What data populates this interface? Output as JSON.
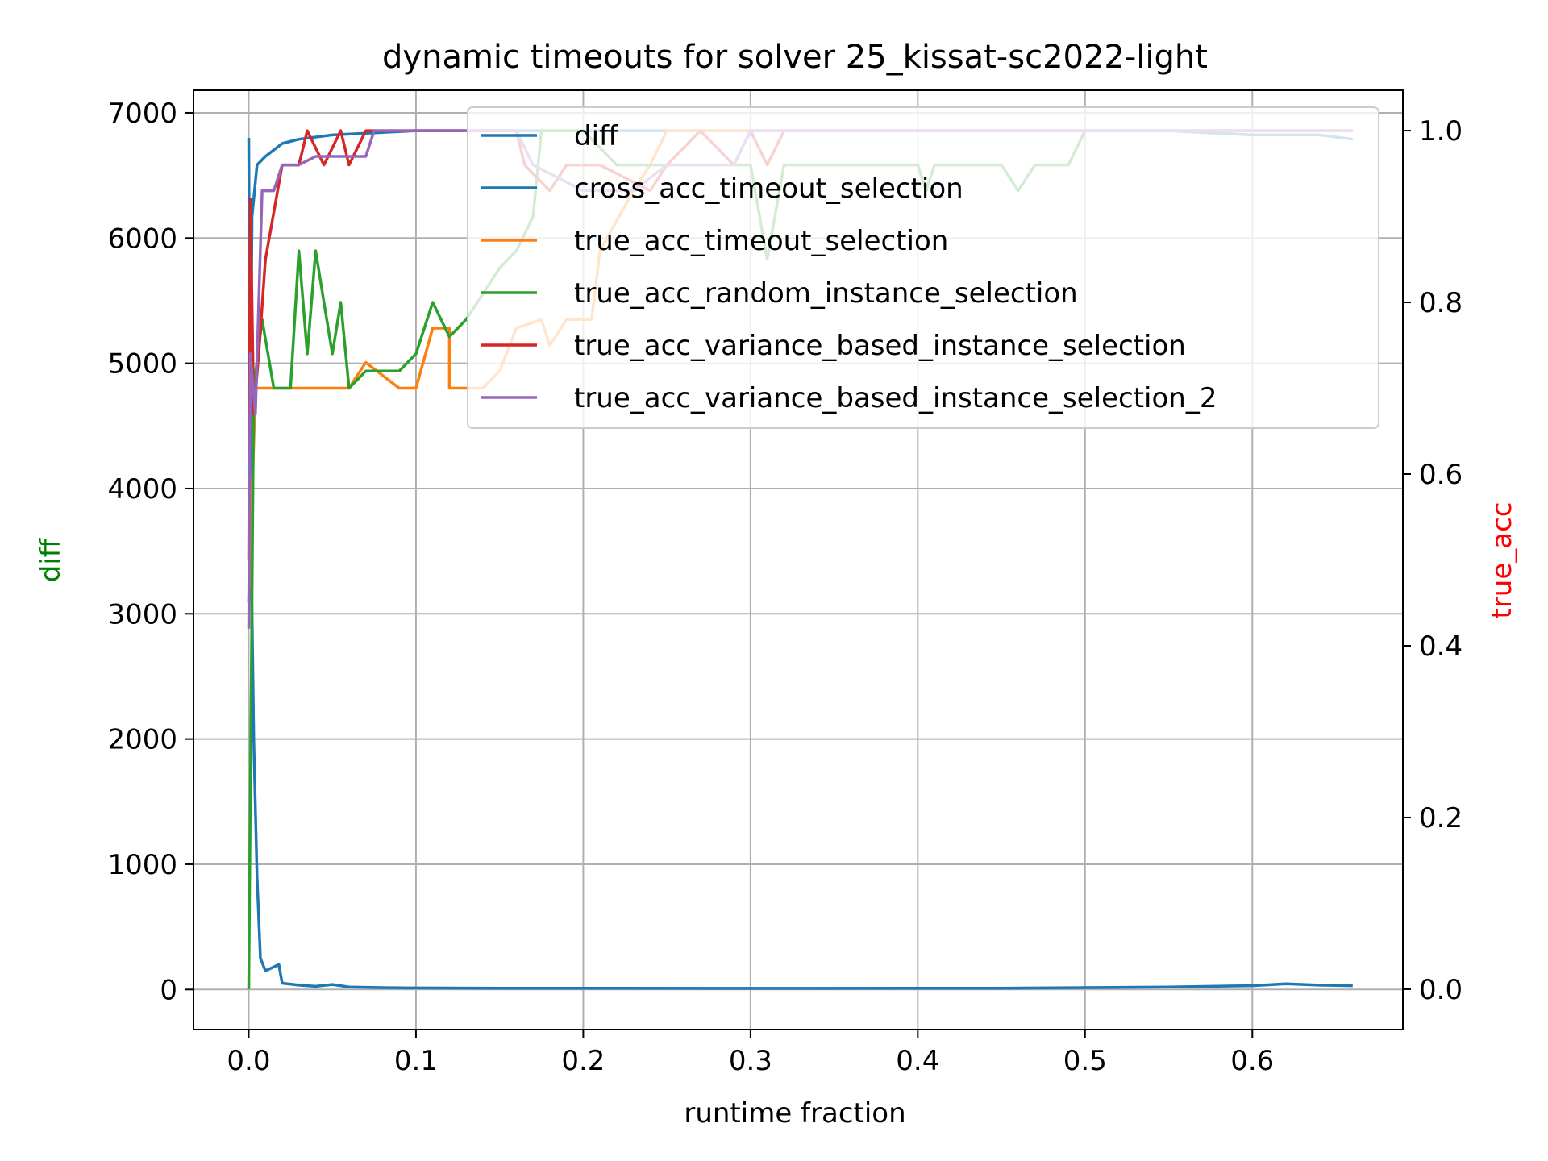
{
  "chart_data": {
    "type": "line",
    "title": "dynamic timeouts for solver 25_kissat-sc2022-light",
    "xlabel": "runtime fraction",
    "ylabel_left": "diff",
    "ylabel_right": "true_acc",
    "ylabel_left_color": "#008000",
    "ylabel_right_color": "#ff0000",
    "xlim": [
      -0.033,
      0.69
    ],
    "ylim_left": [
      -320,
      7180
    ],
    "ylim_right": [
      -0.047,
      1.047
    ],
    "x_ticks": [
      0.0,
      0.1,
      0.2,
      0.3,
      0.4,
      0.5,
      0.6
    ],
    "x_tick_labels": [
      "0.0",
      "0.1",
      "0.2",
      "0.3",
      "0.4",
      "0.5",
      "0.6"
    ],
    "y_left_ticks": [
      0,
      1000,
      2000,
      3000,
      4000,
      5000,
      6000,
      7000
    ],
    "y_left_tick_labels": [
      "0",
      "1000",
      "2000",
      "3000",
      "4000",
      "5000",
      "6000",
      "7000"
    ],
    "y_right_ticks": [
      0.0,
      0.2,
      0.4,
      0.6,
      0.8,
      1.0
    ],
    "y_right_tick_labels": [
      "0.0",
      "0.2",
      "0.4",
      "0.6",
      "0.8",
      "1.0"
    ],
    "grid": true,
    "legend_position": "top-right",
    "legend": [
      {
        "label": "diff",
        "color": "#1f77b4"
      },
      {
        "label": "cross_acc_timeout_selection",
        "color": "#1f77b4"
      },
      {
        "label": "true_acc_timeout_selection",
        "color": "#ff7f0e"
      },
      {
        "label": "true_acc_random_instance_selection",
        "color": "#2ca02c"
      },
      {
        "label": "true_acc_variance_based_instance_selection",
        "color": "#d62728"
      },
      {
        "label": "true_acc_variance_based_instance_selection_2",
        "color": "#9467bd"
      }
    ],
    "series": [
      {
        "name": "diff",
        "axis": "left",
        "color": "#1f77b4",
        "points": [
          [
            0.0,
            6800
          ],
          [
            0.001,
            4000
          ],
          [
            0.003,
            2000
          ],
          [
            0.005,
            900
          ],
          [
            0.007,
            250
          ],
          [
            0.01,
            150
          ],
          [
            0.015,
            180
          ],
          [
            0.018,
            200
          ],
          [
            0.02,
            50
          ],
          [
            0.03,
            35
          ],
          [
            0.04,
            25
          ],
          [
            0.05,
            40
          ],
          [
            0.06,
            20
          ],
          [
            0.08,
            15
          ],
          [
            0.1,
            12
          ],
          [
            0.15,
            10
          ],
          [
            0.2,
            10
          ],
          [
            0.3,
            9
          ],
          [
            0.4,
            10
          ],
          [
            0.45,
            10
          ],
          [
            0.5,
            15
          ],
          [
            0.55,
            20
          ],
          [
            0.6,
            30
          ],
          [
            0.62,
            45
          ],
          [
            0.64,
            35
          ],
          [
            0.66,
            30
          ]
        ]
      },
      {
        "name": "cross_acc_timeout_selection",
        "axis": "right",
        "color": "#1f77b4",
        "points": [
          [
            0.0,
            0.45
          ],
          [
            0.002,
            0.9
          ],
          [
            0.005,
            0.96
          ],
          [
            0.01,
            0.97
          ],
          [
            0.02,
            0.985
          ],
          [
            0.03,
            0.99
          ],
          [
            0.05,
            0.995
          ],
          [
            0.1,
            1.0
          ],
          [
            0.2,
            1.0
          ],
          [
            0.3,
            1.0
          ],
          [
            0.4,
            1.0
          ],
          [
            0.5,
            1.0
          ],
          [
            0.55,
            1.0
          ],
          [
            0.6,
            0.995
          ],
          [
            0.64,
            0.995
          ],
          [
            0.66,
            0.99
          ]
        ]
      },
      {
        "name": "true_acc_timeout_selection",
        "axis": "right",
        "color": "#ff7f0e",
        "points": [
          [
            0.0,
            0.45
          ],
          [
            0.004,
            0.7
          ],
          [
            0.06,
            0.7
          ],
          [
            0.07,
            0.73
          ],
          [
            0.09,
            0.7
          ],
          [
            0.1,
            0.7
          ],
          [
            0.11,
            0.77
          ],
          [
            0.12,
            0.77
          ],
          [
            0.12,
            0.7
          ],
          [
            0.14,
            0.7
          ],
          [
            0.15,
            0.72
          ],
          [
            0.16,
            0.77
          ],
          [
            0.175,
            0.78
          ],
          [
            0.18,
            0.75
          ],
          [
            0.19,
            0.78
          ],
          [
            0.205,
            0.78
          ],
          [
            0.21,
            0.86
          ],
          [
            0.23,
            0.93
          ],
          [
            0.24,
            0.96
          ],
          [
            0.25,
            1.0
          ],
          [
            0.3,
            1.0
          ],
          [
            0.4,
            1.0
          ],
          [
            0.5,
            1.0
          ],
          [
            0.6,
            1.0
          ],
          [
            0.66,
            1.0
          ]
        ]
      },
      {
        "name": "true_acc_random_instance_selection",
        "axis": "right",
        "color": "#2ca02c",
        "points": [
          [
            0.0,
            0.0
          ],
          [
            0.003,
            0.7
          ],
          [
            0.008,
            0.78
          ],
          [
            0.015,
            0.7
          ],
          [
            0.025,
            0.7
          ],
          [
            0.03,
            0.86
          ],
          [
            0.035,
            0.74
          ],
          [
            0.04,
            0.86
          ],
          [
            0.045,
            0.8
          ],
          [
            0.05,
            0.74
          ],
          [
            0.055,
            0.8
          ],
          [
            0.06,
            0.7
          ],
          [
            0.07,
            0.72
          ],
          [
            0.09,
            0.72
          ],
          [
            0.1,
            0.74
          ],
          [
            0.11,
            0.8
          ],
          [
            0.12,
            0.76
          ],
          [
            0.13,
            0.78
          ],
          [
            0.14,
            0.81
          ],
          [
            0.15,
            0.84
          ],
          [
            0.16,
            0.86
          ],
          [
            0.17,
            0.9
          ],
          [
            0.175,
            1.0
          ],
          [
            0.2,
            1.0
          ],
          [
            0.22,
            0.96
          ],
          [
            0.3,
            0.96
          ],
          [
            0.31,
            0.85
          ],
          [
            0.32,
            0.96
          ],
          [
            0.35,
            0.96
          ],
          [
            0.4,
            0.96
          ],
          [
            0.405,
            0.93
          ],
          [
            0.41,
            0.96
          ],
          [
            0.45,
            0.96
          ],
          [
            0.46,
            0.93
          ],
          [
            0.47,
            0.96
          ],
          [
            0.49,
            0.96
          ],
          [
            0.5,
            1.0
          ],
          [
            0.6,
            1.0
          ],
          [
            0.66,
            1.0
          ]
        ]
      },
      {
        "name": "true_acc_variance_based_instance_selection",
        "axis": "right",
        "color": "#d62728",
        "points": [
          [
            0.0,
            0.5
          ],
          [
            0.001,
            0.92
          ],
          [
            0.003,
            0.67
          ],
          [
            0.006,
            0.74
          ],
          [
            0.01,
            0.85
          ],
          [
            0.02,
            0.96
          ],
          [
            0.03,
            0.96
          ],
          [
            0.035,
            1.0
          ],
          [
            0.045,
            0.96
          ],
          [
            0.055,
            1.0
          ],
          [
            0.06,
            0.96
          ],
          [
            0.07,
            1.0
          ],
          [
            0.16,
            1.0
          ],
          [
            0.165,
            0.96
          ],
          [
            0.18,
            0.93
          ],
          [
            0.19,
            0.96
          ],
          [
            0.21,
            0.96
          ],
          [
            0.24,
            0.93
          ],
          [
            0.25,
            0.96
          ],
          [
            0.27,
            1.0
          ],
          [
            0.29,
            0.96
          ],
          [
            0.3,
            1.0
          ],
          [
            0.31,
            0.96
          ],
          [
            0.32,
            1.0
          ],
          [
            0.4,
            1.0
          ],
          [
            0.5,
            1.0
          ],
          [
            0.6,
            1.0
          ],
          [
            0.66,
            1.0
          ]
        ]
      },
      {
        "name": "true_acc_variance_based_instance_selection_2",
        "axis": "right",
        "color": "#9467bd",
        "points": [
          [
            0.0,
            0.42
          ],
          [
            0.001,
            0.74
          ],
          [
            0.004,
            0.67
          ],
          [
            0.008,
            0.93
          ],
          [
            0.015,
            0.93
          ],
          [
            0.02,
            0.96
          ],
          [
            0.03,
            0.96
          ],
          [
            0.04,
            0.97
          ],
          [
            0.07,
            0.97
          ],
          [
            0.075,
            1.0
          ],
          [
            0.16,
            1.0
          ],
          [
            0.17,
            0.96
          ],
          [
            0.2,
            0.93
          ],
          [
            0.23,
            0.93
          ],
          [
            0.25,
            0.96
          ],
          [
            0.29,
            0.96
          ],
          [
            0.3,
            1.0
          ],
          [
            0.4,
            1.0
          ],
          [
            0.5,
            1.0
          ],
          [
            0.6,
            1.0
          ],
          [
            0.66,
            1.0
          ]
        ]
      }
    ]
  }
}
